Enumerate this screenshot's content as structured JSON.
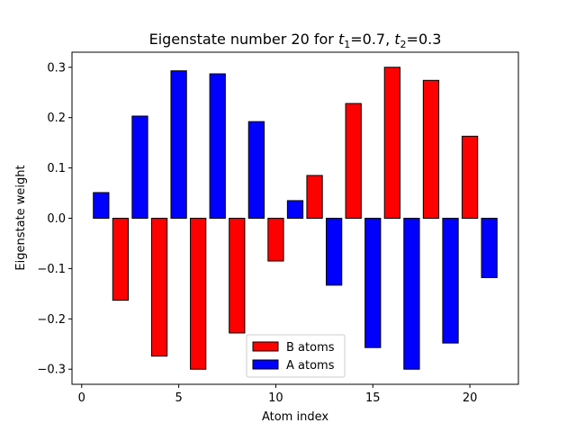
{
  "chart_data": {
    "type": "bar",
    "title": {
      "prefix": "Eigenstate number 20 for ",
      "t1_symbol": "t",
      "t1_sub": "1",
      "t1_value": "=0.7, ",
      "t2_symbol": "t",
      "t2_sub": "2",
      "t2_value": "=0.3"
    },
    "xlabel": "Atom index",
    "ylabel": "Eigenstate weight",
    "xlim": [
      -0.5,
      22.5
    ],
    "ylim": [
      -0.33,
      0.33
    ],
    "xticks": [
      0,
      5,
      10,
      15,
      20
    ],
    "yticks": [
      -0.3,
      -0.2,
      -0.1,
      0.0,
      0.1,
      0.2,
      0.3
    ],
    "ytick_labels": [
      "−0.3",
      "−0.2",
      "−0.1",
      "0.0",
      "0.1",
      "0.2",
      "0.3"
    ],
    "xtick_labels": [
      "0",
      "5",
      "10",
      "15",
      "20"
    ],
    "bar_width": 0.8,
    "grid": false,
    "legend_position": "bottom-center",
    "series": [
      {
        "name": "B atoms",
        "color": "#ff0000",
        "x": [
          2,
          4,
          6,
          8,
          10,
          12,
          14,
          16,
          18,
          20
        ],
        "values": [
          -0.163,
          -0.274,
          -0.3,
          -0.228,
          -0.085,
          0.085,
          0.228,
          0.3,
          0.274,
          0.163
        ]
      },
      {
        "name": "A atoms",
        "color": "#0000ff",
        "x": [
          1,
          3,
          5,
          7,
          9,
          11,
          13,
          15,
          17,
          19,
          21
        ],
        "values": [
          0.051,
          0.203,
          0.293,
          0.287,
          0.192,
          0.035,
          -0.133,
          -0.257,
          -0.3,
          -0.248,
          -0.118
        ]
      }
    ]
  }
}
